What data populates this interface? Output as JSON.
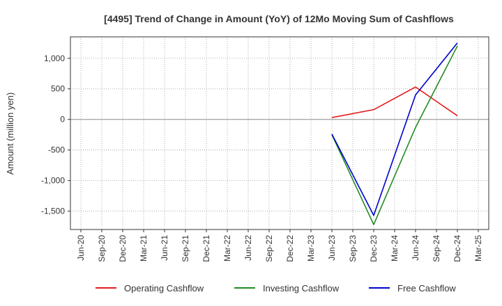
{
  "chart_data": {
    "type": "line",
    "title": "[4495]  Trend of Change in Amount (YoY) of 12Mo Moving Sum of Cashflows",
    "ylabel": "Amount (million yen)",
    "xlabel": "",
    "categories": [
      "Jun-20",
      "Sep-20",
      "Dec-20",
      "Mar-21",
      "Jun-21",
      "Sep-21",
      "Dec-21",
      "Mar-22",
      "Jun-22",
      "Sep-22",
      "Dec-22",
      "Mar-23",
      "Jun-23",
      "Sep-23",
      "Dec-23",
      "Mar-24",
      "Jun-24",
      "Sep-24",
      "Dec-24",
      "Mar-25"
    ],
    "ylim": [
      -1800,
      1350
    ],
    "yticks": [
      1000,
      500,
      0,
      -500,
      -1000,
      -1500
    ],
    "ytick_labels": [
      "1,000",
      "500",
      "0",
      "-500",
      "-1,000",
      "-1,500"
    ],
    "grid": true,
    "legend_position": "bottom",
    "series": [
      {
        "name": "Operating Cashflow",
        "color": "#e41a1c",
        "points": [
          [
            "Jun-23",
            30
          ],
          [
            "Dec-23",
            160
          ],
          [
            "Jun-24",
            530
          ],
          [
            "Dec-24",
            60
          ]
        ]
      },
      {
        "name": "Investing Cashflow",
        "color": "#228b22",
        "points": [
          [
            "Jun-23",
            -250
          ],
          [
            "Dec-23",
            -1720
          ],
          [
            "Jun-24",
            -130
          ],
          [
            "Dec-24",
            1200
          ]
        ]
      },
      {
        "name": "Free Cashflow",
        "color": "#0000cd",
        "points": [
          [
            "Jun-23",
            -240
          ],
          [
            "Dec-23",
            -1570
          ],
          [
            "Jun-24",
            400
          ],
          [
            "Dec-24",
            1250
          ]
        ]
      }
    ]
  }
}
